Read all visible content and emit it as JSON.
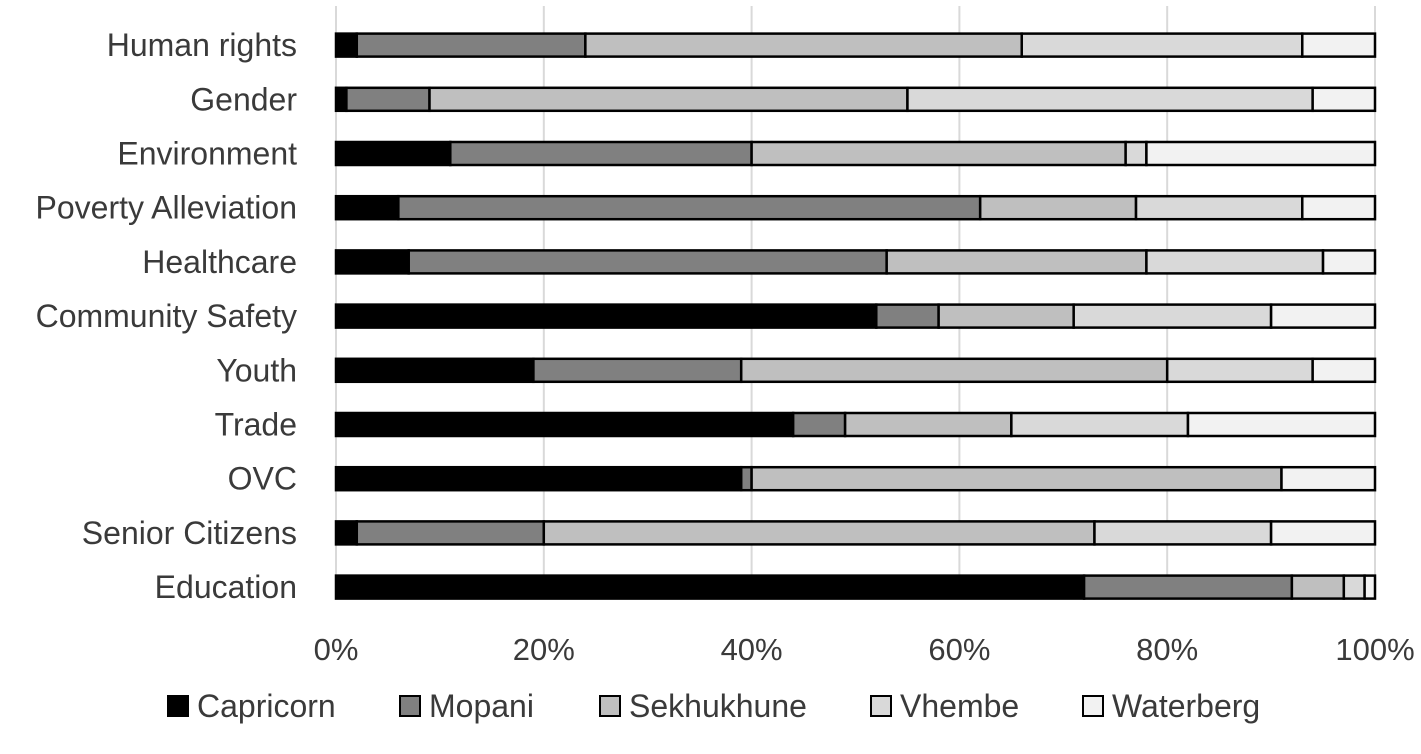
{
  "chart_data": {
    "type": "bar",
    "orientation": "horizontal",
    "stacked": "percent",
    "categories": [
      "Human rights",
      "Gender",
      "Environment",
      "Poverty Alleviation",
      "Healthcare",
      "Community Safety",
      "Youth",
      "Trade",
      "OVC",
      "Senior Citizens",
      "Education"
    ],
    "series": [
      {
        "name": "Capricorn",
        "color": "#000000",
        "values": [
          2,
          1,
          11,
          6,
          7,
          52,
          19,
          44,
          39,
          2,
          72
        ]
      },
      {
        "name": "Mopani",
        "color": "#808080",
        "values": [
          22,
          8,
          29,
          56,
          46,
          6,
          20,
          5,
          1,
          18,
          20
        ]
      },
      {
        "name": "Sekhukhune",
        "color": "#bfbfbf",
        "values": [
          42,
          46,
          36,
          15,
          25,
          13,
          41,
          16,
          51,
          53,
          5
        ]
      },
      {
        "name": "Vhembe",
        "color": "#d9d9d9",
        "values": [
          27,
          39,
          2,
          16,
          17,
          19,
          14,
          17,
          0,
          17,
          2
        ]
      },
      {
        "name": "Waterberg",
        "color": "#f2f2f2",
        "values": [
          7,
          6,
          22,
          7,
          5,
          10,
          6,
          18,
          9,
          10,
          1
        ]
      }
    ],
    "xlim": [
      0,
      100
    ],
    "x_ticks": [
      "0%",
      "20%",
      "40%",
      "60%",
      "80%",
      "100%"
    ],
    "grid": true,
    "legend_position": "bottom"
  }
}
